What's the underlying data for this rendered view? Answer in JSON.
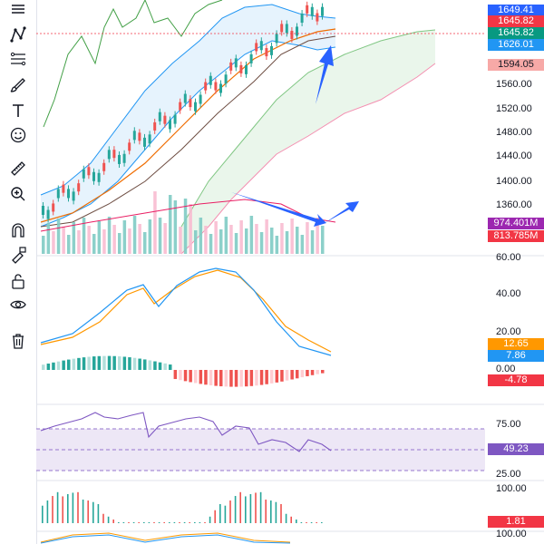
{
  "toolbar": {
    "tools": [
      {
        "name": "lines-tool-icon"
      },
      {
        "name": "pattern-tool-icon"
      },
      {
        "name": "fib-tool-icon"
      },
      {
        "name": "brush-tool-icon"
      },
      {
        "name": "text-tool-icon"
      },
      {
        "name": "emoji-tool-icon"
      },
      {
        "name": "ruler-tool-icon"
      },
      {
        "name": "zoom-in-tool-icon"
      },
      {
        "name": "magnet-tool-icon"
      },
      {
        "name": "lock-drawing-icon"
      },
      {
        "name": "unlock-icon"
      },
      {
        "name": "eye-visibility-icon"
      },
      {
        "name": "trash-icon"
      }
    ]
  },
  "price_axis": {
    "ticks": [
      "1560.00",
      "1520.00",
      "1480.00",
      "1440.00",
      "1400.00",
      "1360.00"
    ],
    "labels": [
      {
        "text": "1649.41",
        "color": "#2962ff"
      },
      {
        "text": "1645.82",
        "color": "#f23645"
      },
      {
        "text": "1645.82",
        "color": "#089981"
      },
      {
        "text": "1626.01",
        "color": "#2196f3"
      },
      {
        "text": "1594.05",
        "color": "#f7a9a7",
        "fg": "#131722"
      }
    ]
  },
  "volume_axis": {
    "labels": [
      {
        "text": "974.401M",
        "color": "#9c27b0"
      },
      {
        "text": "813.785M",
        "color": "#f23645"
      }
    ]
  },
  "macd_panel": {
    "ticks": [
      "60.00",
      "40.00",
      "20.00",
      "0.00"
    ],
    "labels": [
      {
        "text": "12.65",
        "color": "#ff9800"
      },
      {
        "text": "7.86",
        "color": "#2196f3"
      },
      {
        "text": "-4.78",
        "color": "#f23645"
      }
    ]
  },
  "rsi_panel": {
    "ticks": [
      "75.00",
      "25.00"
    ],
    "labels": [
      {
        "text": "49.23",
        "color": "#7e57c2"
      }
    ],
    "upper_band": 70,
    "middle_band": 50,
    "lower_band": 30
  },
  "osc_panel": {
    "ticks": [
      "100.00"
    ],
    "labels": [
      {
        "text": "1.81",
        "color": "#f23645"
      }
    ]
  },
  "stoch_panel": {
    "ticks": [
      "100.00"
    ]
  },
  "colors": {
    "up": "#26a69a",
    "down": "#ef5350",
    "bb_fill": "#e3f2fd",
    "cloud_fill": "#e8f5e9",
    "rsi_fill": "#ede7f6"
  }
}
